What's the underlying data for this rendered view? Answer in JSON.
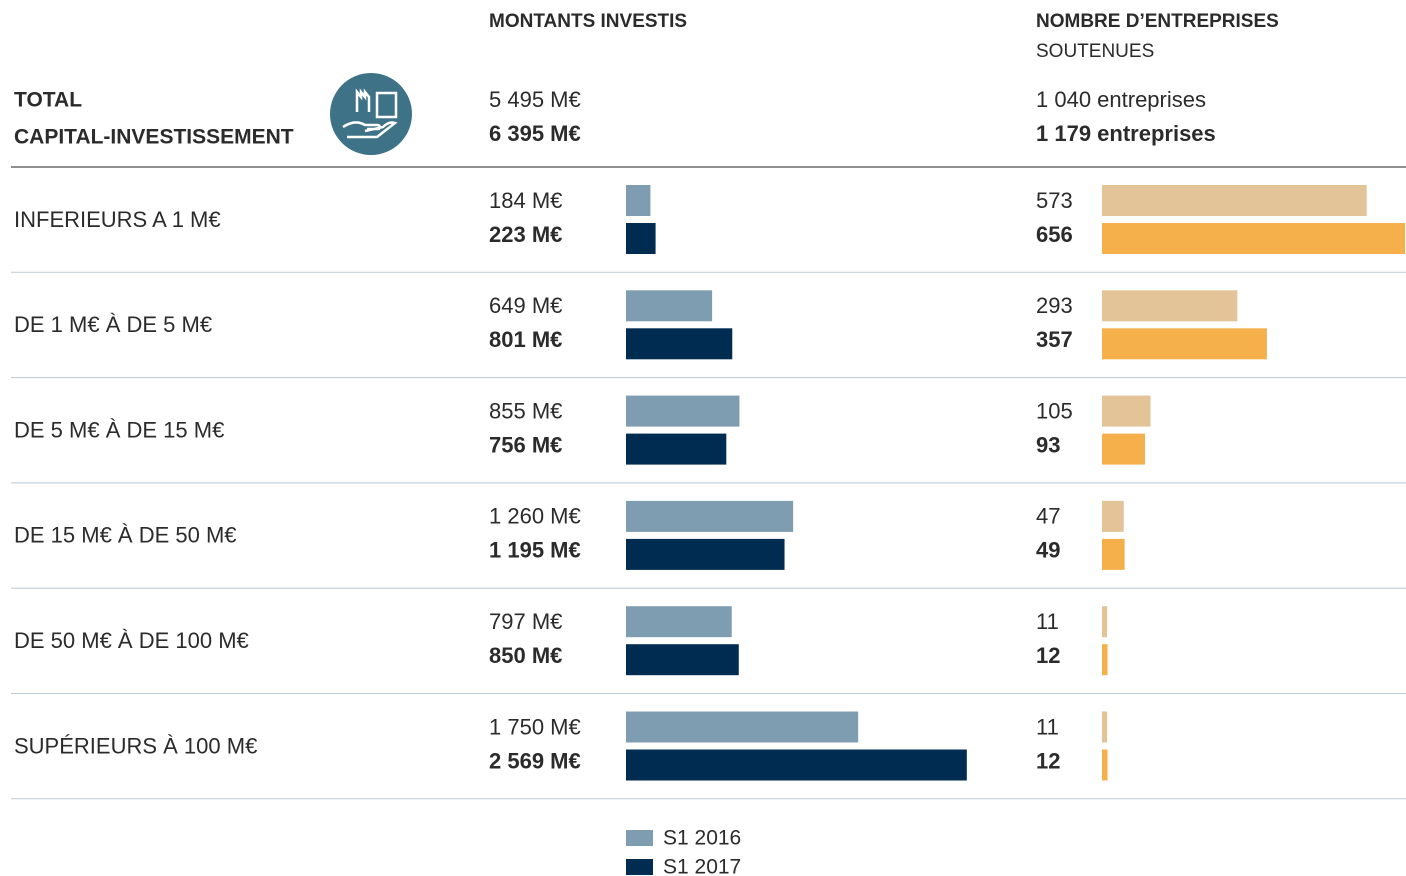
{
  "total": {
    "label_line1": "TOTAL",
    "label_line2": "CAPITAL-INVESTISSEMENT",
    "amounts": [
      "5 495 M€",
      "6 395 M€"
    ],
    "counts": [
      "1 040 entreprises",
      "1 179 entreprises"
    ]
  },
  "chart_data": [
    {
      "type": "bar",
      "orientation": "horizontal",
      "title": "MONTANTS INVESTIS",
      "categories": [
        "INFERIEURS A 1 M€",
        "DE 1 M€ À DE 5 M€",
        "DE 5 M€ À DE 15 M€",
        "DE 15 M€ À DE 50 M€",
        "DE 50 M€ À DE 100 M€",
        "SUPÉRIEURS À 100 M€"
      ],
      "xlim": [
        0,
        3000
      ],
      "series": [
        {
          "name": "S1 2016",
          "color": "#7f9db1",
          "values": [
            184,
            649,
            855,
            1260,
            797,
            1750
          ],
          "value_labels": [
            "184 M€",
            "649 M€",
            "855 M€",
            "1 260 M€",
            "797 M€",
            "1 750 M€"
          ]
        },
        {
          "name": "S1 2017",
          "color": "#002c52",
          "values": [
            223,
            801,
            756,
            1195,
            850,
            2569
          ],
          "value_labels": [
            "223 M€",
            "801 M€",
            "756 M€",
            "1 195 M€",
            "850 M€",
            "2 569 M€"
          ]
        }
      ],
      "legend": "bottom"
    },
    {
      "type": "bar",
      "orientation": "horizontal",
      "title": "NOMBRE D’ENTREPRISES",
      "subtitle": "SOUTENUES",
      "xlim": [
        0,
        656
      ],
      "series": [
        {
          "color": "#e3c398",
          "values": [
            573,
            293,
            105,
            47,
            11,
            11
          ]
        },
        {
          "color": "#f5b04b",
          "values": [
            656,
            357,
            93,
            49,
            12,
            12
          ]
        }
      ]
    }
  ]
}
